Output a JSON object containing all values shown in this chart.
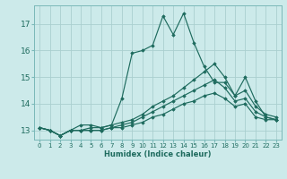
{
  "xlabel": "Humidex (Indice chaleur)",
  "background_color": "#cceaea",
  "grid_color": "#aacfcf",
  "line_color": "#1e6b5e",
  "xlim": [
    -0.5,
    23.5
  ],
  "ylim": [
    12.65,
    17.7
  ],
  "yticks": [
    13,
    14,
    15,
    16,
    17
  ],
  "xticks": [
    0,
    1,
    2,
    3,
    4,
    5,
    6,
    7,
    8,
    9,
    10,
    11,
    12,
    13,
    14,
    15,
    16,
    17,
    18,
    19,
    20,
    21,
    22,
    23
  ],
  "lines": [
    {
      "x": [
        0,
        1,
        2,
        3,
        4,
        5,
        6,
        7,
        8,
        9,
        10,
        11,
        12,
        13,
        14,
        15,
        16,
        17,
        18,
        19,
        20,
        21,
        22,
        23
      ],
      "y": [
        13.1,
        13.0,
        12.8,
        13.0,
        13.2,
        13.2,
        13.1,
        13.2,
        14.2,
        15.9,
        16.0,
        16.2,
        17.3,
        16.6,
        17.4,
        16.3,
        15.4,
        14.8,
        14.8,
        14.3,
        15.0,
        14.1,
        13.5,
        13.4
      ]
    },
    {
      "x": [
        0,
        1,
        2,
        3,
        4,
        5,
        6,
        7,
        8,
        9,
        10,
        11,
        12,
        13,
        14,
        15,
        16,
        17,
        18,
        19,
        20,
        21,
        22,
        23
      ],
      "y": [
        13.1,
        13.0,
        12.8,
        13.0,
        13.0,
        13.1,
        13.1,
        13.2,
        13.3,
        13.4,
        13.6,
        13.9,
        14.1,
        14.3,
        14.6,
        14.9,
        15.2,
        15.5,
        15.0,
        14.3,
        14.5,
        13.9,
        13.6,
        13.5
      ]
    },
    {
      "x": [
        0,
        1,
        2,
        3,
        4,
        5,
        6,
        7,
        8,
        9,
        10,
        11,
        12,
        13,
        14,
        15,
        16,
        17,
        18,
        19,
        20,
        21,
        22,
        23
      ],
      "y": [
        13.1,
        13.0,
        12.8,
        13.0,
        13.0,
        13.0,
        13.0,
        13.1,
        13.2,
        13.3,
        13.5,
        13.7,
        13.9,
        14.1,
        14.3,
        14.5,
        14.7,
        14.9,
        14.6,
        14.1,
        14.2,
        13.7,
        13.5,
        13.4
      ]
    },
    {
      "x": [
        0,
        1,
        2,
        3,
        4,
        5,
        6,
        7,
        8,
        9,
        10,
        11,
        12,
        13,
        14,
        15,
        16,
        17,
        18,
        19,
        20,
        21,
        22,
        23
      ],
      "y": [
        13.1,
        13.0,
        12.8,
        13.0,
        13.0,
        13.0,
        13.0,
        13.1,
        13.1,
        13.2,
        13.3,
        13.5,
        13.6,
        13.8,
        14.0,
        14.1,
        14.3,
        14.4,
        14.2,
        13.9,
        14.0,
        13.5,
        13.4,
        13.4
      ]
    }
  ]
}
